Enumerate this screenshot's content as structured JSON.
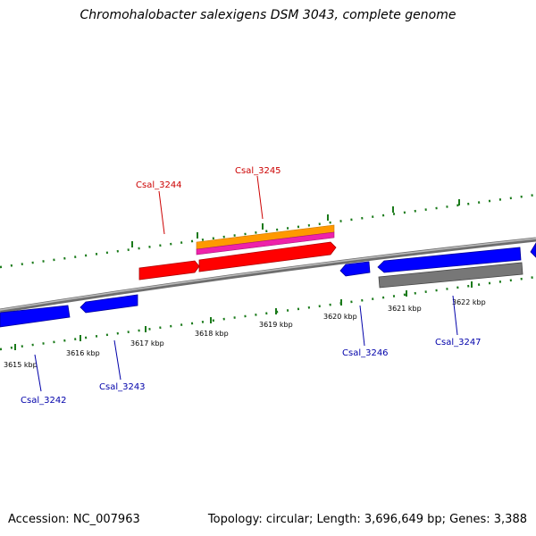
{
  "title": "Chromohalobacter salexigens DSM 3043, complete genome",
  "footer": {
    "accession": "Accession: NC_007963",
    "stats": "Topology: circular; Length: 3,696,649 bp; Genes: 3,388"
  },
  "scale_labels": [
    "3615 kbp",
    "3616 kbp",
    "3617 kbp",
    "3618 kbp",
    "3619 kbp",
    "3620 kbp",
    "3621 kbp",
    "3622 kbp"
  ],
  "genes": [
    "Csal_3242",
    "Csal_3243",
    "Csal_3244",
    "Csal_3245",
    "Csal_3246",
    "Csal_3247"
  ],
  "colors": {
    "forward_cds": "#ff0000",
    "reverse_cds": "#0000ff",
    "forward_label": "#cc0000",
    "reverse_label": "#0000aa",
    "ticks": "#1a7a1a",
    "backbone": "#888888",
    "orange_feature": "#ff9900",
    "magenta_feature": "#ee22aa",
    "gray_feature": "#777777"
  }
}
